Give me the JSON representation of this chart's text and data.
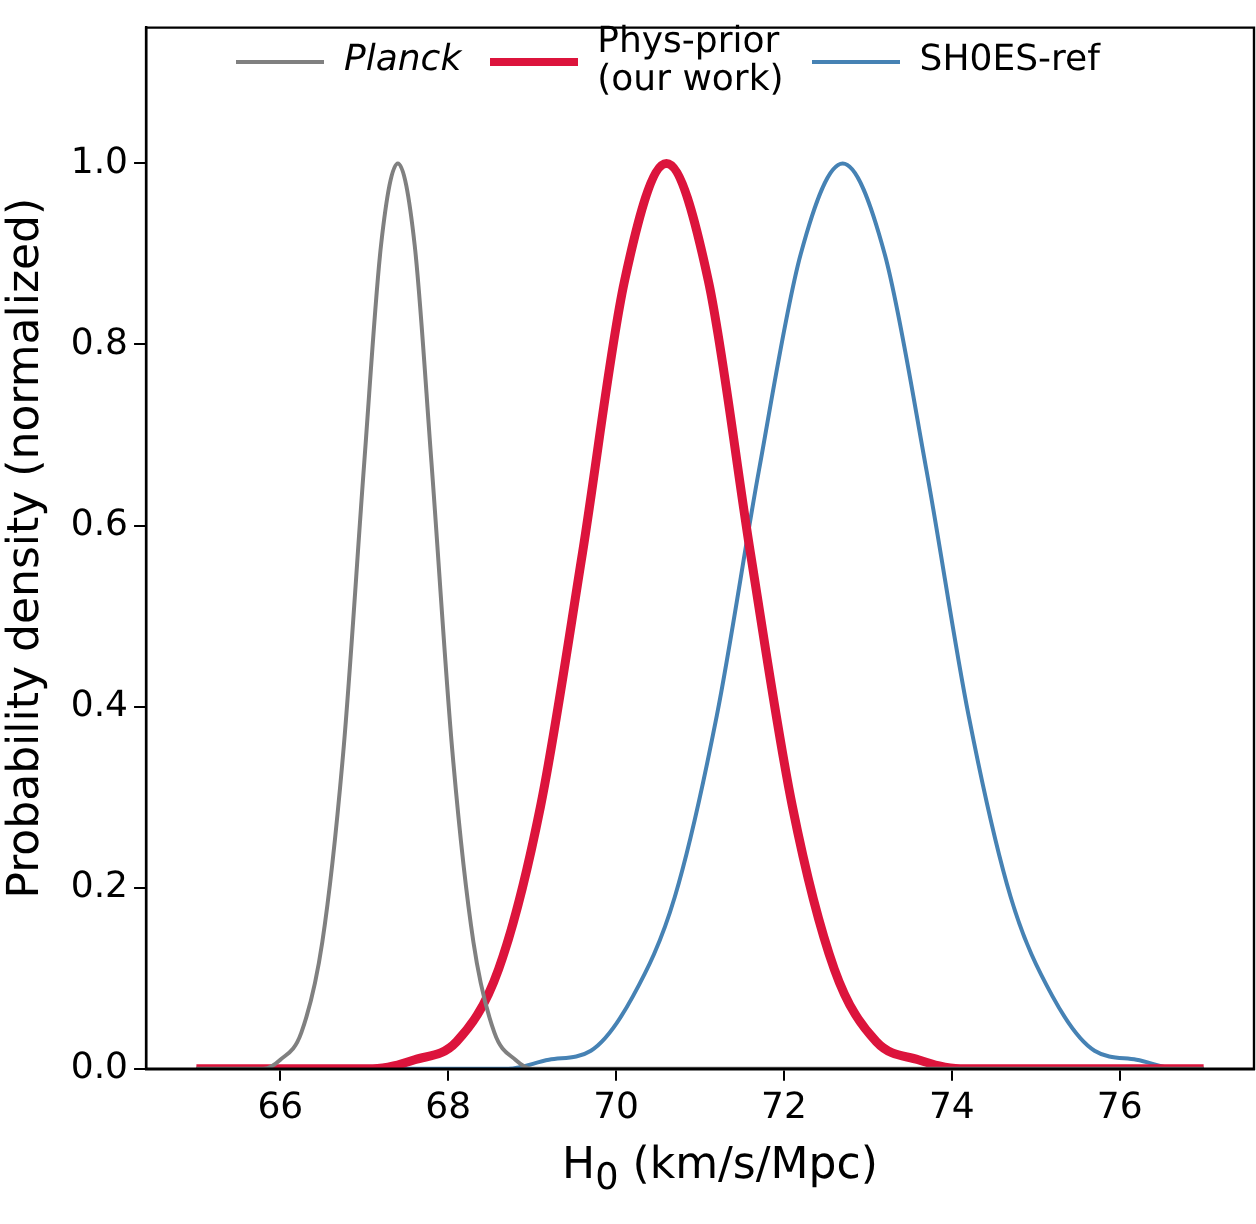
{
  "chart_data": {
    "type": "line",
    "xlabel": "H$_{0}$ (km/s/Mpc)",
    "ylabel": "Probability density (normalized)",
    "xlim": [
      64.4,
      77.6
    ],
    "ylim": [
      0,
      1.15
    ],
    "xticks": [
      66,
      68,
      70,
      72,
      74,
      76
    ],
    "yticks": [
      {
        "value": 0,
        "label": "0.0"
      },
      {
        "value": 0.2,
        "label": "0.2"
      },
      {
        "value": 0.4,
        "label": "0.4"
      },
      {
        "value": 0.6,
        "label": "0.6"
      },
      {
        "value": 0.8,
        "label": "0.8"
      },
      {
        "value": 1,
        "label": "1.0"
      }
    ],
    "grid": false,
    "legend": "top",
    "marker": "none",
    "line_style": "solid",
    "series": [
      {
        "name": "Planck",
        "color": "#808080",
        "x": [
          65,
          65.8,
          66.0,
          66.25,
          66.5,
          66.75,
          67.0,
          67.2,
          67.4,
          67.6,
          67.8,
          68.05,
          68.3,
          68.55,
          68.8,
          69.0,
          77
        ],
        "values": [
          0,
          0,
          0.01,
          0.04,
          0.14,
          0.35,
          0.67,
          0.91,
          1,
          0.91,
          0.67,
          0.35,
          0.14,
          0.04,
          0.01,
          0,
          0
        ]
      },
      {
        "name": "Phys-prior\n(our work)",
        "color": "#dc143c",
        "x": [
          65,
          67.1,
          67.6,
          68.1,
          68.6,
          69.1,
          69.6,
          70.1,
          70.6,
          71.1,
          71.6,
          72.1,
          72.6,
          73.1,
          73.6,
          74.1,
          77
        ],
        "values": [
          0,
          0,
          0.01,
          0.03,
          0.11,
          0.29,
          0.57,
          0.87,
          1,
          0.87,
          0.57,
          0.29,
          0.11,
          0.03,
          0.01,
          0,
          0
        ]
      },
      {
        "name": "SH0ES-ref",
        "color": "#4682b4",
        "x": [
          65,
          68.7,
          69.2,
          69.7,
          70.2,
          70.7,
          71.2,
          71.7,
          72.2,
          72.7,
          73.2,
          73.7,
          74.2,
          74.7,
          75.2,
          75.7,
          76.2,
          76.7,
          77
        ],
        "values": [
          0,
          0,
          0.01,
          0.02,
          0.08,
          0.19,
          0.39,
          0.66,
          0.9,
          1,
          0.9,
          0.66,
          0.39,
          0.19,
          0.08,
          0.02,
          0.01,
          0,
          0
        ]
      }
    ]
  }
}
